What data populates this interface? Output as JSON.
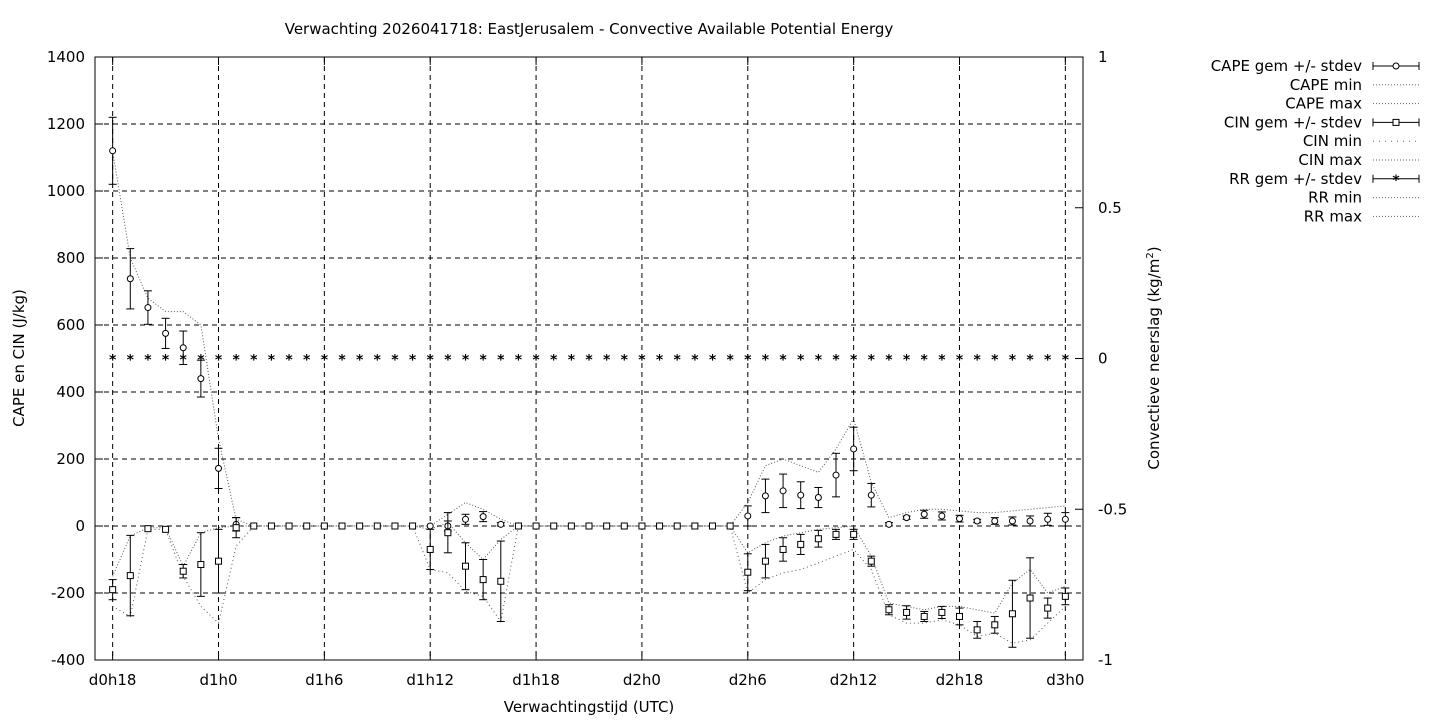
{
  "chart_data": {
    "type": "line",
    "title": "Verwachting 2026041718: EastJerusalem - Convective Available Potential Energy",
    "xlabel": "Verwachtingstijd (UTC)",
    "ylabel": "CAPE en CIN (J/kg)",
    "y2label_main": "Convectieve neerslag (kg/m",
    "y2label_sup": "2",
    "y2label_end": ")",
    "xlim": [
      -1,
      55
    ],
    "ylim": [
      -400,
      1400
    ],
    "y2lim": [
      -1,
      1
    ],
    "x_ticks": [
      {
        "x": 0,
        "label": "d0h18"
      },
      {
        "x": 6,
        "label": "d1h0"
      },
      {
        "x": 12,
        "label": "d1h6"
      },
      {
        "x": 18,
        "label": "d1h12"
      },
      {
        "x": 24,
        "label": "d1h18"
      },
      {
        "x": 30,
        "label": "d2h0"
      },
      {
        "x": 36,
        "label": "d2h6"
      },
      {
        "x": 42,
        "label": "d2h12"
      },
      {
        "x": 48,
        "label": "d2h18"
      },
      {
        "x": 54,
        "label": "d3h0"
      }
    ],
    "y_ticks": [
      "-400",
      "-200",
      "0",
      "200",
      "400",
      "600",
      "800",
      "1000",
      "1200",
      "1400"
    ],
    "y2_ticks": [
      "-1",
      "-0.5",
      "0",
      "0.5",
      "1"
    ],
    "grid": true,
    "legend_position": "outside-right",
    "legend": [
      {
        "label": "CAPE gem +/- stdev",
        "style": "circle"
      },
      {
        "label": "CAPE min",
        "style": "dotted"
      },
      {
        "label": "CAPE max",
        "style": "dotted"
      },
      {
        "label": "CIN gem +/- stdev",
        "style": "square"
      },
      {
        "label": "CIN min",
        "style": "dotted-sparse"
      },
      {
        "label": "CIN max",
        "style": "dotted"
      },
      {
        "label": "RR gem +/- stdev",
        "style": "star"
      },
      {
        "label": "RR min",
        "style": "dotted"
      },
      {
        "label": "RR max",
        "style": "dotted"
      }
    ],
    "cape_mean": [
      [
        0,
        1120,
        100
      ],
      [
        1,
        738,
        90
      ],
      [
        2,
        652,
        50
      ],
      [
        3,
        575,
        45
      ],
      [
        4,
        532,
        50
      ],
      [
        5,
        440,
        55
      ],
      [
        6,
        172,
        60
      ],
      [
        7,
        5,
        20
      ],
      [
        8,
        0,
        0
      ],
      [
        9,
        0,
        0
      ],
      [
        10,
        0,
        0
      ],
      [
        11,
        0,
        0
      ],
      [
        12,
        0,
        0
      ],
      [
        13,
        0,
        0
      ],
      [
        14,
        0,
        0
      ],
      [
        15,
        0,
        0
      ],
      [
        16,
        0,
        0
      ],
      [
        17,
        0,
        0
      ],
      [
        18,
        0,
        0
      ],
      [
        19,
        0,
        15
      ],
      [
        20,
        20,
        15
      ],
      [
        21,
        28,
        15
      ],
      [
        22,
        5,
        5
      ],
      [
        23,
        0,
        0
      ],
      [
        24,
        0,
        0
      ],
      [
        25,
        0,
        0
      ],
      [
        26,
        0,
        0
      ],
      [
        27,
        0,
        0
      ],
      [
        28,
        0,
        0
      ],
      [
        29,
        0,
        0
      ],
      [
        30,
        0,
        0
      ],
      [
        31,
        0,
        0
      ],
      [
        32,
        0,
        0
      ],
      [
        33,
        0,
        0
      ],
      [
        34,
        0,
        0
      ],
      [
        35,
        0,
        0
      ],
      [
        36,
        30,
        30
      ],
      [
        37,
        90,
        50
      ],
      [
        38,
        105,
        50
      ],
      [
        39,
        92,
        40
      ],
      [
        40,
        85,
        30
      ],
      [
        41,
        152,
        65
      ],
      [
        42,
        230,
        65
      ],
      [
        43,
        92,
        35
      ],
      [
        44,
        5,
        5
      ],
      [
        45,
        25,
        5
      ],
      [
        46,
        35,
        12
      ],
      [
        47,
        30,
        12
      ],
      [
        48,
        22,
        10
      ],
      [
        49,
        15,
        5
      ],
      [
        50,
        15,
        10
      ],
      [
        51,
        15,
        12
      ],
      [
        52,
        15,
        15
      ],
      [
        53,
        20,
        18
      ],
      [
        54,
        20,
        20
      ]
    ],
    "cape_max": [
      [
        0,
        1120
      ],
      [
        1,
        800
      ],
      [
        2,
        680
      ],
      [
        3,
        640
      ],
      [
        4,
        640
      ],
      [
        5,
        600
      ],
      [
        6,
        260
      ],
      [
        7,
        20
      ],
      [
        8,
        0
      ],
      [
        18,
        0
      ],
      [
        19,
        35
      ],
      [
        20,
        70
      ],
      [
        21,
        50
      ],
      [
        22,
        20
      ],
      [
        23,
        0
      ],
      [
        35,
        0
      ],
      [
        36,
        70
      ],
      [
        37,
        180
      ],
      [
        38,
        200
      ],
      [
        39,
        180
      ],
      [
        40,
        160
      ],
      [
        41,
        230
      ],
      [
        42,
        320
      ],
      [
        43,
        130
      ],
      [
        44,
        25
      ],
      [
        45,
        40
      ],
      [
        46,
        50
      ],
      [
        47,
        50
      ],
      [
        48,
        45
      ],
      [
        49,
        40
      ],
      [
        50,
        40
      ],
      [
        51,
        45
      ],
      [
        52,
        50
      ],
      [
        53,
        55
      ],
      [
        54,
        60
      ]
    ],
    "cin_mean": [
      [
        0,
        -190,
        30
      ],
      [
        1,
        -148,
        120
      ],
      [
        2,
        -8,
        0
      ],
      [
        3,
        -10,
        0
      ],
      [
        4,
        -135,
        20
      ],
      [
        5,
        -115,
        95
      ],
      [
        6,
        -105,
        95
      ],
      [
        7,
        -5,
        30
      ],
      [
        8,
        0,
        0
      ],
      [
        9,
        0,
        0
      ],
      [
        10,
        0,
        0
      ],
      [
        11,
        0,
        0
      ],
      [
        12,
        0,
        0
      ],
      [
        13,
        0,
        0
      ],
      [
        14,
        0,
        0
      ],
      [
        15,
        0,
        0
      ],
      [
        16,
        0,
        0
      ],
      [
        17,
        0,
        0
      ],
      [
        18,
        -70,
        60
      ],
      [
        19,
        -20,
        60
      ],
      [
        20,
        -120,
        70
      ],
      [
        21,
        -160,
        60
      ],
      [
        22,
        -165,
        120
      ],
      [
        23,
        0,
        0
      ],
      [
        24,
        0,
        0
      ],
      [
        25,
        0,
        0
      ],
      [
        26,
        0,
        0
      ],
      [
        27,
        0,
        0
      ],
      [
        28,
        0,
        0
      ],
      [
        29,
        0,
        0
      ],
      [
        30,
        0,
        0
      ],
      [
        31,
        0,
        0
      ],
      [
        32,
        0,
        0
      ],
      [
        33,
        0,
        0
      ],
      [
        34,
        0,
        0
      ],
      [
        35,
        0,
        0
      ],
      [
        36,
        -138,
        55
      ],
      [
        37,
        -105,
        50
      ],
      [
        38,
        -70,
        35
      ],
      [
        39,
        -55,
        30
      ],
      [
        40,
        -38,
        25
      ],
      [
        41,
        -25,
        15
      ],
      [
        42,
        -25,
        15
      ],
      [
        43,
        -105,
        15
      ],
      [
        44,
        -250,
        15
      ],
      [
        45,
        -258,
        20
      ],
      [
        46,
        -270,
        15
      ],
      [
        47,
        -258,
        18
      ],
      [
        48,
        -270,
        25
      ],
      [
        49,
        -310,
        25
      ],
      [
        50,
        -295,
        25
      ],
      [
        51,
        -262,
        100
      ],
      [
        52,
        -215,
        120
      ],
      [
        53,
        -245,
        30
      ],
      [
        54,
        -210,
        25
      ]
    ],
    "cin_min": [
      [
        0,
        -240
      ],
      [
        1,
        -270
      ],
      [
        2,
        -10
      ],
      [
        3,
        -10
      ],
      [
        4,
        -150
      ],
      [
        5,
        -240
      ],
      [
        6,
        -290
      ],
      [
        7,
        -60
      ],
      [
        8,
        0
      ],
      [
        17,
        0
      ],
      [
        18,
        -130
      ],
      [
        19,
        -140
      ],
      [
        20,
        -195
      ],
      [
        21,
        -210
      ],
      [
        22,
        -285
      ],
      [
        23,
        0
      ],
      [
        35,
        0
      ],
      [
        36,
        -200
      ],
      [
        37,
        -160
      ],
      [
        38,
        -140
      ],
      [
        39,
        -130
      ],
      [
        40,
        -110
      ],
      [
        41,
        -90
      ],
      [
        42,
        -70
      ],
      [
        43,
        -130
      ],
      [
        44,
        -265
      ],
      [
        45,
        -290
      ],
      [
        46,
        -290
      ],
      [
        47,
        -280
      ],
      [
        48,
        -295
      ],
      [
        49,
        -330
      ],
      [
        50,
        -320
      ],
      [
        51,
        -350
      ],
      [
        52,
        -340
      ],
      [
        53,
        -290
      ],
      [
        54,
        -240
      ]
    ],
    "cin_max": [
      [
        0,
        -150
      ],
      [
        1,
        -30
      ],
      [
        2,
        -5
      ],
      [
        3,
        -5
      ],
      [
        4,
        -120
      ],
      [
        5,
        -20
      ],
      [
        6,
        -5
      ],
      [
        7,
        0
      ],
      [
        17,
        0
      ],
      [
        18,
        -10
      ],
      [
        19,
        10
      ],
      [
        20,
        -50
      ],
      [
        21,
        -100
      ],
      [
        22,
        -40
      ],
      [
        23,
        0
      ],
      [
        35,
        0
      ],
      [
        36,
        -80
      ],
      [
        37,
        -50
      ],
      [
        38,
        -30
      ],
      [
        39,
        -20
      ],
      [
        40,
        -10
      ],
      [
        41,
        -5
      ],
      [
        42,
        0
      ],
      [
        43,
        -90
      ],
      [
        44,
        -230
      ],
      [
        45,
        -240
      ],
      [
        46,
        -250
      ],
      [
        47,
        -240
      ],
      [
        48,
        -240
      ],
      [
        49,
        -250
      ],
      [
        50,
        -260
      ],
      [
        51,
        -170
      ],
      [
        52,
        -130
      ],
      [
        53,
        -200
      ],
      [
        54,
        -180
      ]
    ],
    "rr_mean": [
      [
        0,
        0
      ],
      [
        1,
        0
      ],
      [
        2,
        0
      ],
      [
        3,
        0
      ],
      [
        4,
        0
      ],
      [
        5,
        0
      ],
      [
        6,
        0
      ],
      [
        7,
        0
      ],
      [
        8,
        0
      ],
      [
        9,
        0
      ],
      [
        10,
        0
      ],
      [
        11,
        0
      ],
      [
        12,
        0
      ],
      [
        13,
        0
      ],
      [
        14,
        0
      ],
      [
        15,
        0
      ],
      [
        16,
        0
      ],
      [
        17,
        0
      ],
      [
        18,
        0
      ],
      [
        19,
        0
      ],
      [
        20,
        0
      ],
      [
        21,
        0
      ],
      [
        22,
        0
      ],
      [
        23,
        0
      ],
      [
        24,
        0
      ],
      [
        25,
        0
      ],
      [
        26,
        0
      ],
      [
        27,
        0
      ],
      [
        28,
        0
      ],
      [
        29,
        0
      ],
      [
        30,
        0
      ],
      [
        31,
        0
      ],
      [
        32,
        0
      ],
      [
        33,
        0
      ],
      [
        34,
        0
      ],
      [
        35,
        0
      ],
      [
        36,
        0
      ],
      [
        37,
        0
      ],
      [
        38,
        0
      ],
      [
        39,
        0
      ],
      [
        40,
        0
      ],
      [
        41,
        0
      ],
      [
        42,
        0
      ],
      [
        43,
        0
      ],
      [
        44,
        0
      ],
      [
        45,
        0
      ],
      [
        46,
        0
      ],
      [
        47,
        0
      ],
      [
        48,
        0
      ],
      [
        49,
        0
      ],
      [
        50,
        0
      ],
      [
        51,
        0
      ],
      [
        52,
        0
      ],
      [
        53,
        0
      ],
      [
        54,
        0
      ]
    ]
  }
}
